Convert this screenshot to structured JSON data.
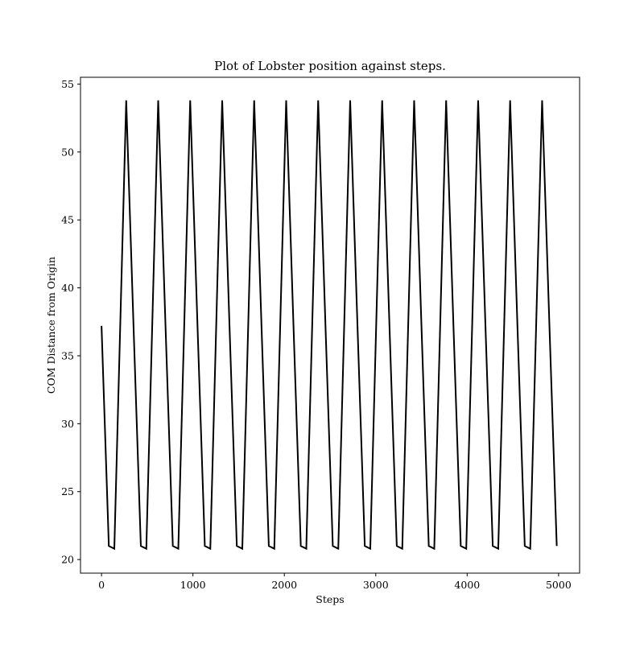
{
  "chart_data": {
    "type": "line",
    "title": "Plot of Lobster position against steps.",
    "xlabel": "Steps",
    "ylabel": "COM Distance from Origin",
    "xlim": [
      -230,
      5230
    ],
    "ylim": [
      19.0,
      55.5
    ],
    "xticks": [
      0,
      1000,
      2000,
      3000,
      4000,
      5000
    ],
    "yticks": [
      20,
      25,
      30,
      35,
      40,
      45,
      50,
      55
    ],
    "grid": false,
    "legend": "none",
    "series": [
      {
        "color": "#000000",
        "x": [
          0,
          80,
          140,
          270,
          350,
          430,
          490,
          620,
          700,
          780,
          840,
          970,
          1050,
          1130,
          1190,
          1320,
          1400,
          1480,
          1540,
          1670,
          1750,
          1830,
          1890,
          2020,
          2100,
          2180,
          2240,
          2370,
          2450,
          2530,
          2590,
          2720,
          2800,
          2880,
          2940,
          3070,
          3150,
          3230,
          3290,
          3420,
          3500,
          3580,
          3640,
          3770,
          3850,
          3930,
          3990,
          4120,
          4200,
          4280,
          4340,
          4470,
          4550,
          4630,
          4690,
          4820,
          4900,
          4980
        ],
        "y": [
          37.2,
          21.0,
          20.8,
          53.8,
          37.2,
          21.0,
          20.8,
          53.8,
          37.2,
          21.0,
          20.8,
          53.8,
          37.2,
          21.0,
          20.8,
          53.8,
          37.2,
          21.0,
          20.8,
          53.8,
          37.2,
          21.0,
          20.8,
          53.8,
          37.2,
          21.0,
          20.8,
          53.8,
          37.2,
          21.0,
          20.8,
          53.8,
          37.2,
          21.0,
          20.8,
          53.8,
          37.2,
          21.0,
          20.8,
          53.8,
          37.2,
          21.0,
          20.8,
          53.8,
          37.2,
          21.0,
          20.8,
          53.8,
          37.2,
          21.0,
          20.8,
          53.8,
          37.2,
          21.0,
          20.8,
          53.8,
          37.2,
          21.0
        ]
      }
    ]
  }
}
